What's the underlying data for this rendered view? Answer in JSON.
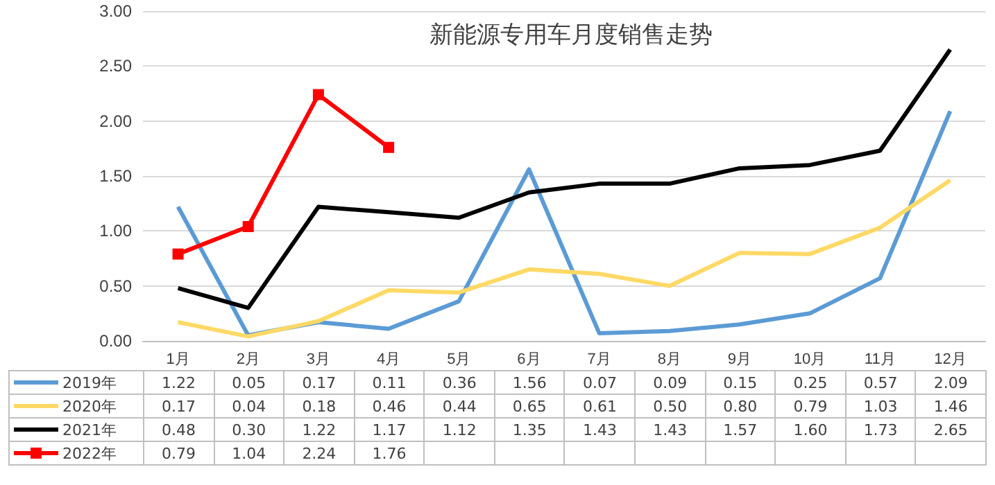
{
  "chart_data": {
    "type": "line",
    "title": "新能源专用车月度销售走势",
    "categories": [
      "1月",
      "2月",
      "3月",
      "4月",
      "5月",
      "6月",
      "7月",
      "8月",
      "9月",
      "10月",
      "11月",
      "12月"
    ],
    "series": [
      {
        "name": "2019年",
        "color": "#5b9bd5",
        "marker": "none",
        "values": [
          1.22,
          0.05,
          0.17,
          0.11,
          0.36,
          1.56,
          0.07,
          0.09,
          0.15,
          0.25,
          0.57,
          2.09
        ],
        "value_labels": [
          "1.22",
          "0.05",
          "0.17",
          "0.11",
          "0.36",
          "1.56",
          "0.07",
          "0.09",
          "0.15",
          "0.25",
          "0.57",
          "2.09"
        ]
      },
      {
        "name": "2020年",
        "color": "#ffd966",
        "marker": "none",
        "values": [
          0.17,
          0.04,
          0.18,
          0.46,
          0.44,
          0.65,
          0.61,
          0.5,
          0.8,
          0.79,
          1.03,
          1.46
        ],
        "value_labels": [
          "0.17",
          "0.04",
          "0.18",
          "0.46",
          "0.44",
          "0.65",
          "0.61",
          "0.50",
          "0.80",
          "0.79",
          "1.03",
          "1.46"
        ]
      },
      {
        "name": "2021年",
        "color": "#000000",
        "marker": "none",
        "values": [
          0.48,
          0.3,
          1.22,
          1.17,
          1.12,
          1.35,
          1.43,
          1.43,
          1.57,
          1.6,
          1.73,
          2.65
        ],
        "value_labels": [
          "0.48",
          "0.30",
          "1.22",
          "1.17",
          "1.12",
          "1.35",
          "1.43",
          "1.43",
          "1.57",
          "1.60",
          "1.73",
          "2.65"
        ]
      },
      {
        "name": "2022年",
        "color": "#ff0000",
        "marker": "square",
        "values": [
          0.79,
          1.04,
          2.24,
          1.76,
          null,
          null,
          null,
          null,
          null,
          null,
          null,
          null
        ],
        "value_labels": [
          "0.79",
          "1.04",
          "2.24",
          "1.76",
          null,
          null,
          null,
          null,
          null,
          null,
          null,
          null
        ]
      }
    ],
    "ylim": [
      0,
      3
    ],
    "yticks": [
      {
        "value": 0,
        "label": "0.00"
      },
      {
        "value": 0.5,
        "label": "0.50"
      },
      {
        "value": 1,
        "label": "1.00"
      },
      {
        "value": 1.5,
        "label": "1.50"
      },
      {
        "value": 2,
        "label": "2.00"
      },
      {
        "value": 2.5,
        "label": "2.50"
      },
      {
        "value": 3,
        "label": "3.00"
      }
    ],
    "grid": "y",
    "legend": "bottom"
  }
}
